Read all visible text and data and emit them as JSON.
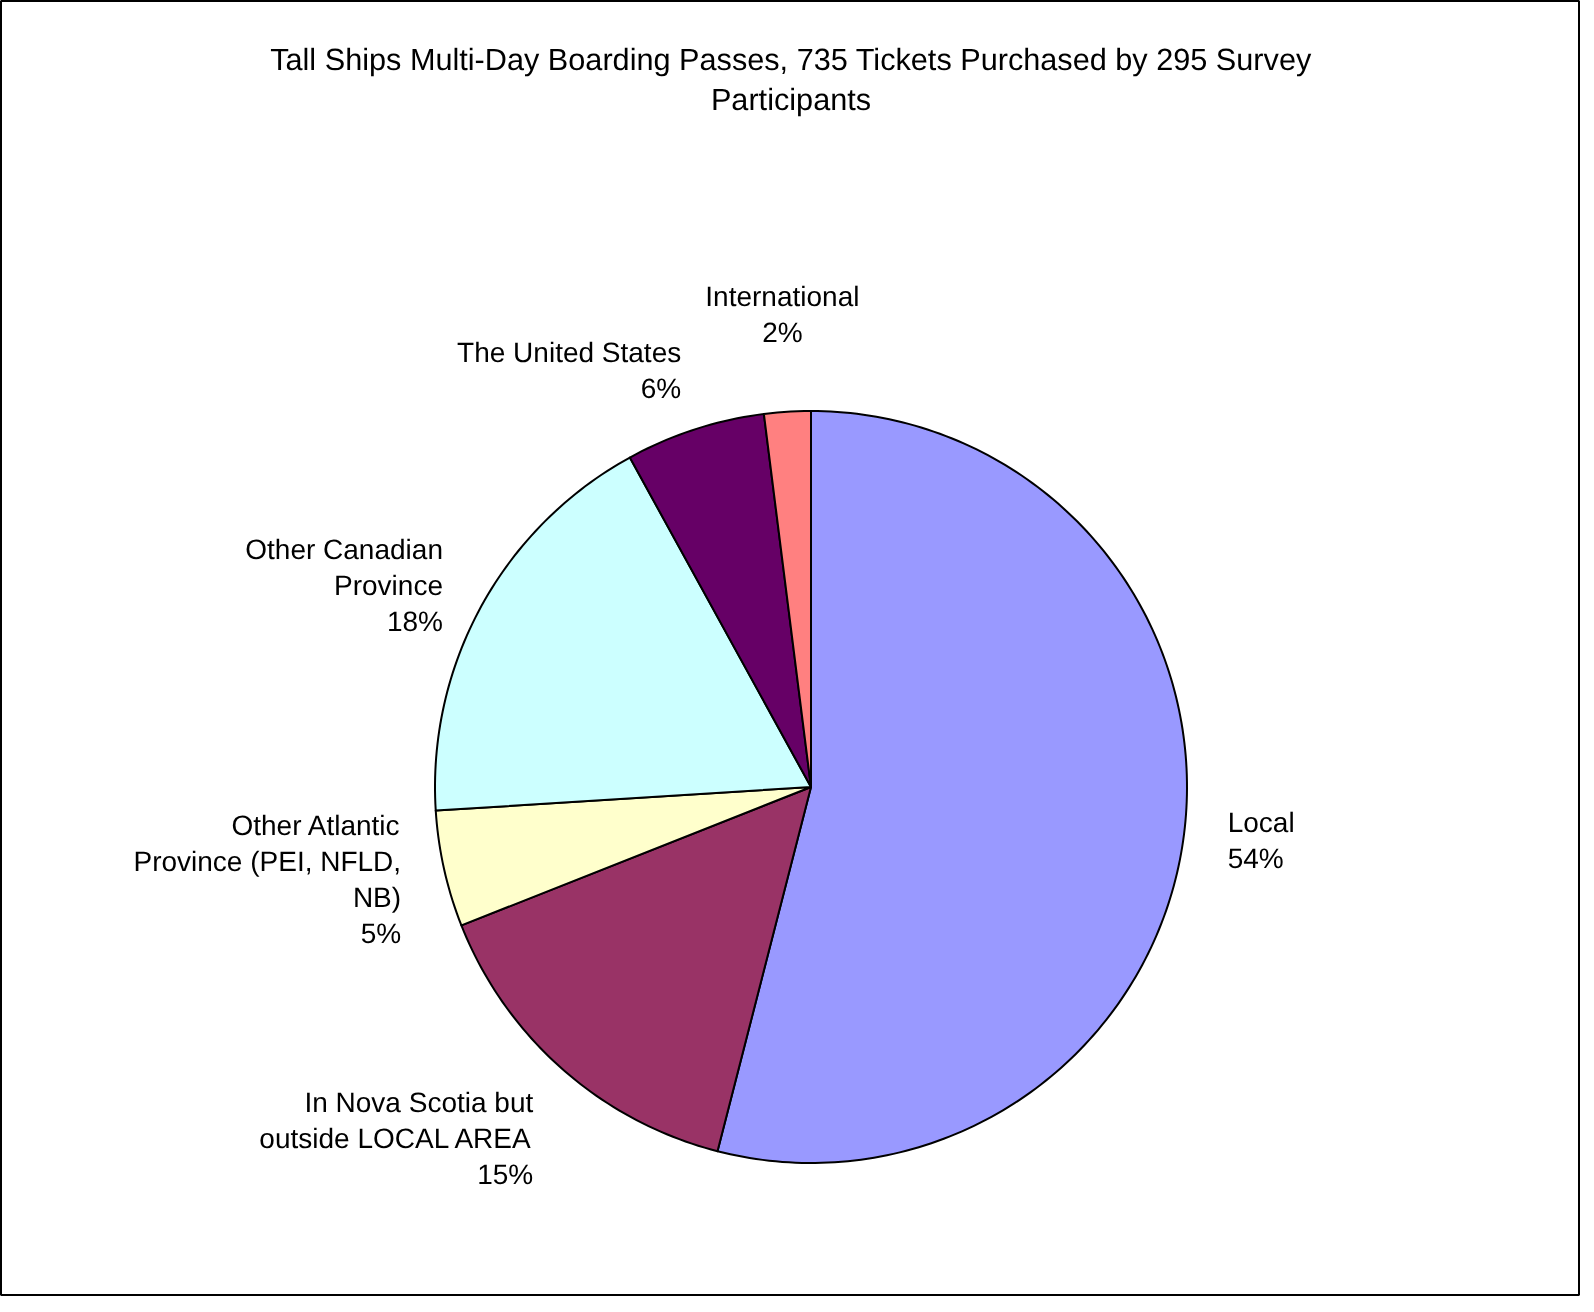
{
  "chart_data": {
    "type": "pie",
    "title": "Tall Ships Multi-Day Boarding Passes, 735 Tickets Purchased by 295 Survey Participants",
    "categories": [
      "Local",
      "In Nova Scotia but outside LOCAL AREA",
      "Other Atlantic Province (PEI, NFLD, NB)",
      "Other Canadian Province",
      "The United States",
      "International"
    ],
    "values": [
      54,
      15,
      5,
      18,
      6,
      2
    ],
    "colors": [
      "#9999ff",
      "#993366",
      "#ffffcc",
      "#ccffff",
      "#660066",
      "#ff8080"
    ],
    "value_labels": [
      "54%",
      "15%",
      "5%",
      "18%",
      "6%",
      "2%"
    ],
    "legend": false
  }
}
